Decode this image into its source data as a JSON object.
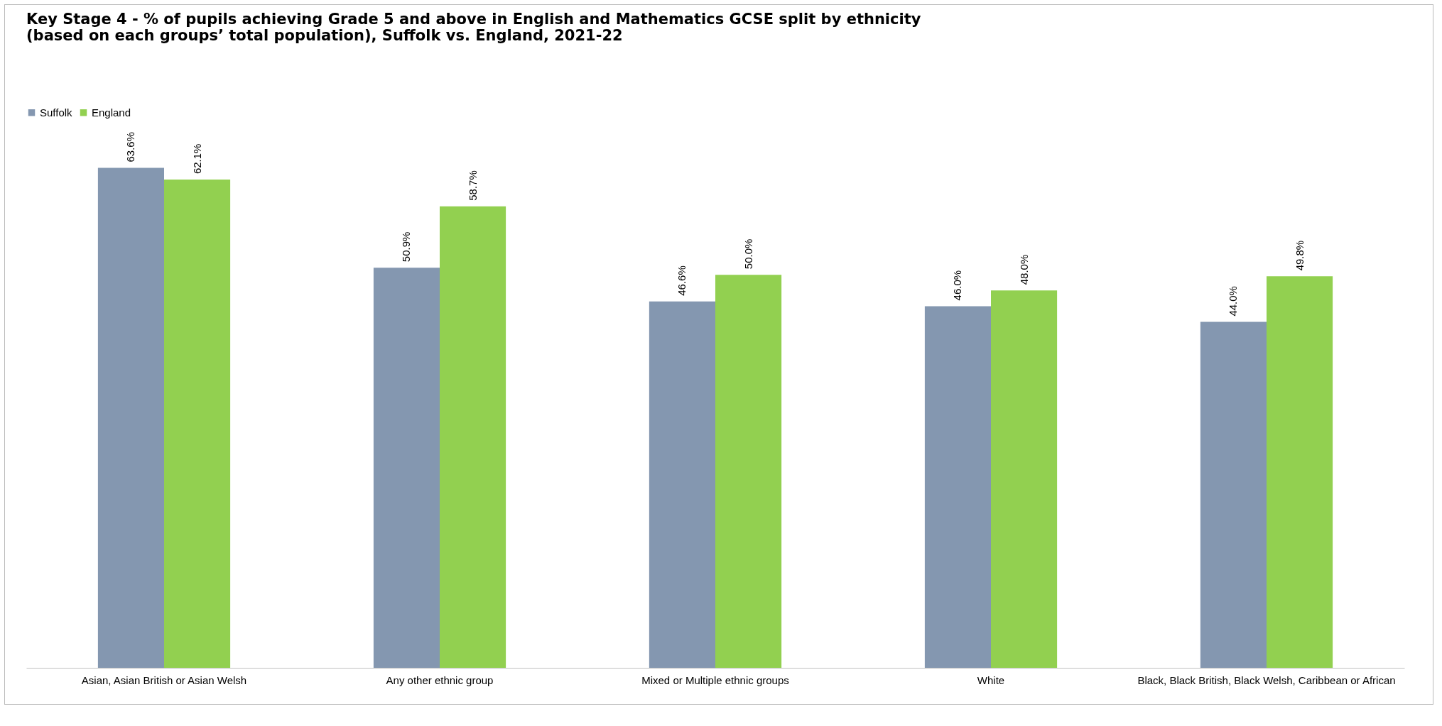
{
  "chart_data": {
    "type": "bar",
    "title": "Key Stage 4 - % of pupils achieving Grade 5 and above in English and Mathematics GCSE split by ethnicity (based on each groups’ total population), Suffolk vs. England, 2021-22",
    "categories": [
      "Asian, Asian British or Asian Welsh",
      "Any other ethnic group",
      "Mixed or Multiple ethnic groups",
      "White",
      "Black, Black British, Black Welsh, Caribbean or African"
    ],
    "series": [
      {
        "name": "Suffolk",
        "color": "#8497b0",
        "values": [
          63.6,
          50.9,
          46.6,
          46.0,
          44.0
        ],
        "value_labels": [
          "63.6%",
          "50.9%",
          "46.6%",
          "46.0%",
          "44.0%"
        ]
      },
      {
        "name": "England",
        "color": "#92d050",
        "values": [
          62.1,
          58.7,
          50.0,
          48.0,
          49.8
        ],
        "value_labels": [
          "62.1%",
          "58.7%",
          "50.0%",
          "48.0%",
          "49.8%"
        ]
      }
    ],
    "legend": "top left",
    "grid": false
  }
}
